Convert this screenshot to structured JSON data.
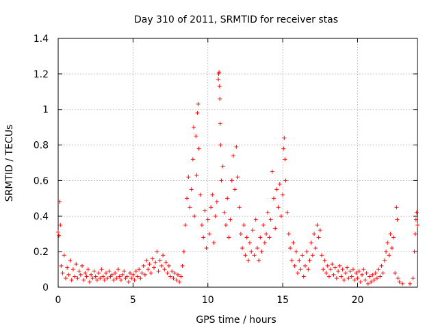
{
  "chart_data": {
    "type": "scatter",
    "title": "Day 310 of 2011, SRMTID for receiver stas",
    "xlabel": "GPS time / hours",
    "ylabel": "SRMTID / TECUs",
    "xlim": [
      0,
      24
    ],
    "ylim": [
      0,
      1.4
    ],
    "xticks": [
      0,
      5,
      10,
      15,
      20
    ],
    "xtick_labels": [
      "0",
      "5",
      "10",
      "15",
      "20"
    ],
    "yticks": [
      0,
      0.2,
      0.4,
      0.6,
      0.8,
      1,
      1.2,
      1.4
    ],
    "ytick_labels": [
      "0",
      "0.2",
      "0.4",
      "0.6",
      "0.8",
      "1",
      "1.2",
      "1.4"
    ],
    "grid": true,
    "marker": "+",
    "series_color": "#ff0000",
    "series": [
      {
        "name": "SRMTID",
        "points": [
          [
            0.0,
            0.31
          ],
          [
            0.05,
            0.29
          ],
          [
            0.1,
            0.48
          ],
          [
            0.15,
            0.35
          ],
          [
            0.2,
            0.12
          ],
          [
            0.3,
            0.08
          ],
          [
            0.4,
            0.18
          ],
          [
            0.5,
            0.05
          ],
          [
            0.6,
            0.11
          ],
          [
            0.7,
            0.07
          ],
          [
            0.8,
            0.15
          ],
          [
            0.9,
            0.04
          ],
          [
            1.0,
            0.1
          ],
          [
            1.1,
            0.06
          ],
          [
            1.2,
            0.13
          ],
          [
            1.3,
            0.05
          ],
          [
            1.4,
            0.09
          ],
          [
            1.5,
            0.07
          ],
          [
            1.6,
            0.12
          ],
          [
            1.7,
            0.04
          ],
          [
            1.8,
            0.08
          ],
          [
            1.9,
            0.06
          ],
          [
            2.0,
            0.1
          ],
          [
            2.1,
            0.03
          ],
          [
            2.2,
            0.07
          ],
          [
            2.3,
            0.05
          ],
          [
            2.4,
            0.09
          ],
          [
            2.5,
            0.06
          ],
          [
            2.6,
            0.04
          ],
          [
            2.7,
            0.08
          ],
          [
            2.8,
            0.05
          ],
          [
            2.9,
            0.1
          ],
          [
            3.0,
            0.06
          ],
          [
            3.1,
            0.04
          ],
          [
            3.2,
            0.08
          ],
          [
            3.3,
            0.05
          ],
          [
            3.4,
            0.09
          ],
          [
            3.5,
            0.06
          ],
          [
            3.6,
            0.07
          ],
          [
            3.7,
            0.04
          ],
          [
            3.8,
            0.08
          ],
          [
            3.9,
            0.05
          ],
          [
            4.0,
            0.1
          ],
          [
            4.1,
            0.06
          ],
          [
            4.2,
            0.04
          ],
          [
            4.3,
            0.07
          ],
          [
            4.4,
            0.09
          ],
          [
            4.5,
            0.05
          ],
          [
            4.6,
            0.06
          ],
          [
            4.7,
            0.03
          ],
          [
            4.8,
            0.08
          ],
          [
            4.9,
            0.05
          ],
          [
            5.0,
            0.07
          ],
          [
            5.1,
            0.04
          ],
          [
            5.2,
            0.09
          ],
          [
            5.3,
            0.06
          ],
          [
            5.4,
            0.1
          ],
          [
            5.5,
            0.05
          ],
          [
            5.6,
            0.08
          ],
          [
            5.7,
            0.12
          ],
          [
            5.8,
            0.07
          ],
          [
            5.9,
            0.15
          ],
          [
            6.0,
            0.1
          ],
          [
            6.1,
            0.13
          ],
          [
            6.2,
            0.08
          ],
          [
            6.3,
            0.16
          ],
          [
            6.4,
            0.11
          ],
          [
            6.5,
            0.14
          ],
          [
            6.6,
            0.2
          ],
          [
            6.7,
            0.09
          ],
          [
            6.8,
            0.15
          ],
          [
            6.9,
            0.12
          ],
          [
            7.0,
            0.18
          ],
          [
            7.1,
            0.1
          ],
          [
            7.2,
            0.14
          ],
          [
            7.3,
            0.08
          ],
          [
            7.4,
            0.12
          ],
          [
            7.5,
            0.06
          ],
          [
            7.6,
            0.09
          ],
          [
            7.7,
            0.05
          ],
          [
            7.8,
            0.08
          ],
          [
            7.9,
            0.04
          ],
          [
            8.0,
            0.07
          ],
          [
            8.1,
            0.03
          ],
          [
            8.2,
            0.06
          ],
          [
            8.3,
            0.12
          ],
          [
            8.4,
            0.2
          ],
          [
            8.5,
            0.35
          ],
          [
            8.6,
            0.5
          ],
          [
            8.7,
            0.62
          ],
          [
            8.8,
            0.45
          ],
          [
            8.9,
            0.55
          ],
          [
            9.0,
            0.72
          ],
          [
            9.05,
            0.9
          ],
          [
            9.1,
            0.4
          ],
          [
            9.2,
            0.85
          ],
          [
            9.25,
            0.63
          ],
          [
            9.3,
            0.98
          ],
          [
            9.35,
            1.03
          ],
          [
            9.4,
            0.78
          ],
          [
            9.5,
            0.52
          ],
          [
            9.6,
            0.35
          ],
          [
            9.7,
            0.28
          ],
          [
            9.8,
            0.43
          ],
          [
            9.9,
            0.22
          ],
          [
            10.0,
            0.38
          ],
          [
            10.1,
            0.3
          ],
          [
            10.2,
            0.45
          ],
          [
            10.3,
            0.52
          ],
          [
            10.4,
            0.25
          ],
          [
            10.5,
            0.4
          ],
          [
            10.6,
            0.48
          ],
          [
            10.7,
            1.17
          ],
          [
            10.72,
            1.2
          ],
          [
            10.75,
            1.21
          ],
          [
            10.78,
            1.13
          ],
          [
            10.8,
            1.06
          ],
          [
            10.82,
            0.92
          ],
          [
            10.85,
            0.8
          ],
          [
            10.9,
            0.6
          ],
          [
            11.0,
            0.68
          ],
          [
            11.1,
            0.42
          ],
          [
            11.2,
            0.35
          ],
          [
            11.3,
            0.5
          ],
          [
            11.4,
            0.28
          ],
          [
            11.5,
            0.38
          ],
          [
            11.6,
            0.6
          ],
          [
            11.7,
            0.74
          ],
          [
            11.8,
            0.55
          ],
          [
            11.9,
            0.79
          ],
          [
            12.0,
            0.62
          ],
          [
            12.1,
            0.45
          ],
          [
            12.2,
            0.3
          ],
          [
            12.3,
            0.22
          ],
          [
            12.4,
            0.35
          ],
          [
            12.5,
            0.18
          ],
          [
            12.6,
            0.28
          ],
          [
            12.7,
            0.15
          ],
          [
            12.8,
            0.25
          ],
          [
            12.9,
            0.2
          ],
          [
            13.0,
            0.32
          ],
          [
            13.1,
            0.18
          ],
          [
            13.2,
            0.38
          ],
          [
            13.3,
            0.22
          ],
          [
            13.4,
            0.15
          ],
          [
            13.5,
            0.28
          ],
          [
            13.6,
            0.2
          ],
          [
            13.7,
            0.35
          ],
          [
            13.8,
            0.25
          ],
          [
            13.9,
            0.3
          ],
          [
            14.0,
            0.42
          ],
          [
            14.1,
            0.28
          ],
          [
            14.2,
            0.38
          ],
          [
            14.3,
            0.65
          ],
          [
            14.4,
            0.5
          ],
          [
            14.5,
            0.33
          ],
          [
            14.6,
            0.55
          ],
          [
            14.7,
            0.45
          ],
          [
            14.8,
            0.58
          ],
          [
            14.9,
            0.4
          ],
          [
            15.0,
            0.52
          ],
          [
            15.05,
            0.78
          ],
          [
            15.1,
            0.84
          ],
          [
            15.15,
            0.72
          ],
          [
            15.2,
            0.6
          ],
          [
            15.3,
            0.42
          ],
          [
            15.4,
            0.3
          ],
          [
            15.5,
            0.22
          ],
          [
            15.6,
            0.15
          ],
          [
            15.7,
            0.25
          ],
          [
            15.8,
            0.12
          ],
          [
            15.9,
            0.2
          ],
          [
            16.0,
            0.08
          ],
          [
            16.1,
            0.15
          ],
          [
            16.2,
            0.1
          ],
          [
            16.3,
            0.18
          ],
          [
            16.4,
            0.06
          ],
          [
            16.5,
            0.12
          ],
          [
            16.6,
            0.2
          ],
          [
            16.7,
            0.1
          ],
          [
            16.8,
            0.15
          ],
          [
            16.9,
            0.25
          ],
          [
            17.0,
            0.18
          ],
          [
            17.1,
            0.3
          ],
          [
            17.2,
            0.22
          ],
          [
            17.3,
            0.35
          ],
          [
            17.4,
            0.28
          ],
          [
            17.5,
            0.32
          ],
          [
            17.6,
            0.18
          ],
          [
            17.7,
            0.1
          ],
          [
            17.8,
            0.15
          ],
          [
            17.9,
            0.08
          ],
          [
            18.0,
            0.12
          ],
          [
            18.1,
            0.06
          ],
          [
            18.2,
            0.1
          ],
          [
            18.3,
            0.13
          ],
          [
            18.4,
            0.07
          ],
          [
            18.5,
            0.11
          ],
          [
            18.6,
            0.05
          ],
          [
            18.7,
            0.09
          ],
          [
            18.8,
            0.12
          ],
          [
            18.9,
            0.06
          ],
          [
            19.0,
            0.1
          ],
          [
            19.1,
            0.04
          ],
          [
            19.2,
            0.08
          ],
          [
            19.3,
            0.11
          ],
          [
            19.4,
            0.05
          ],
          [
            19.5,
            0.09
          ],
          [
            19.6,
            0.06
          ],
          [
            19.7,
            0.1
          ],
          [
            19.8,
            0.04
          ],
          [
            19.9,
            0.08
          ],
          [
            20.0,
            0.05
          ],
          [
            20.1,
            0.09
          ],
          [
            20.2,
            0.03
          ],
          [
            20.3,
            0.07
          ],
          [
            20.4,
            0.1
          ],
          [
            20.5,
            0.04
          ],
          [
            20.6,
            0.08
          ],
          [
            20.7,
            0.02
          ],
          [
            20.8,
            0.06
          ],
          [
            20.9,
            0.03
          ],
          [
            21.0,
            0.07
          ],
          [
            21.1,
            0.04
          ],
          [
            21.2,
            0.08
          ],
          [
            21.3,
            0.05
          ],
          [
            21.4,
            0.1
          ],
          [
            21.5,
            0.06
          ],
          [
            21.6,
            0.12
          ],
          [
            21.7,
            0.08
          ],
          [
            21.8,
            0.15
          ],
          [
            21.9,
            0.2
          ],
          [
            22.0,
            0.25
          ],
          [
            22.1,
            0.18
          ],
          [
            22.2,
            0.3
          ],
          [
            22.3,
            0.22
          ],
          [
            22.4,
            0.28
          ],
          [
            22.5,
            0.08
          ],
          [
            22.6,
            0.45
          ],
          [
            22.65,
            0.38
          ],
          [
            22.7,
            0.05
          ],
          [
            22.8,
            0.03
          ],
          [
            23.0,
            0.02
          ],
          [
            23.5,
            0.02
          ],
          [
            23.7,
            0.05
          ],
          [
            23.8,
            0.2
          ],
          [
            23.85,
            0.3
          ],
          [
            23.9,
            0.38
          ],
          [
            23.95,
            0.42
          ],
          [
            24.0,
            0.35
          ]
        ]
      }
    ]
  }
}
